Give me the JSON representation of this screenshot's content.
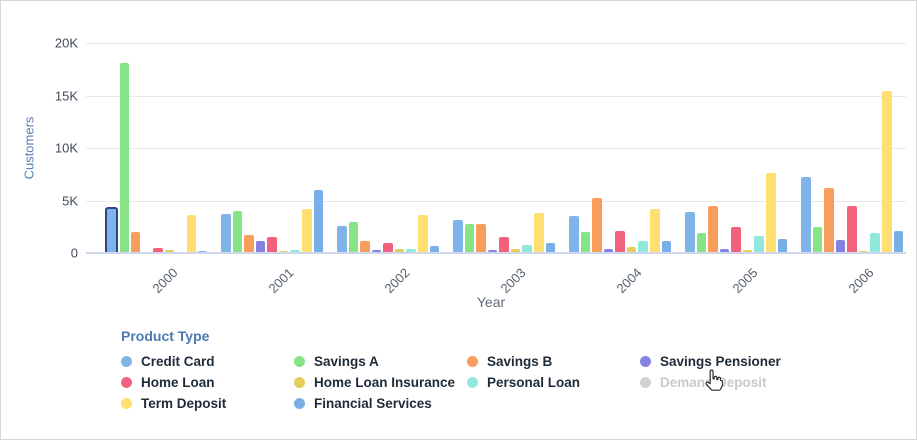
{
  "chart_data": {
    "type": "bar",
    "title": "",
    "xlabel": "Year",
    "ylabel": "Customers",
    "categories": [
      "2000",
      "2001",
      "2002",
      "2003",
      "2004",
      "2005",
      "2006"
    ],
    "ylim": [
      0,
      20000
    ],
    "yticks": [
      {
        "value": 0,
        "label": "0"
      },
      {
        "value": 5000,
        "label": "5K"
      },
      {
        "value": 10000,
        "label": "10K"
      },
      {
        "value": 15000,
        "label": "15K"
      },
      {
        "value": 20000,
        "label": "20K"
      }
    ],
    "grid": true,
    "legend_position": "bottom",
    "legend_title": "Product Type",
    "series": [
      {
        "name": "Credit Card",
        "color": "#80b4e8",
        "disabled": false,
        "values": [
          4400,
          3700,
          2550,
          3150,
          3500,
          3900,
          7200
        ]
      },
      {
        "name": "Savings A",
        "color": "#87e385",
        "disabled": false,
        "values": [
          18100,
          4000,
          3000,
          2800,
          2000,
          1900,
          2500
        ]
      },
      {
        "name": "Savings B",
        "color": "#f79e5c",
        "disabled": false,
        "values": [
          2000,
          1700,
          1100,
          2800,
          5200,
          4500,
          6200
        ]
      },
      {
        "name": "Savings Pensioner",
        "color": "#8583e2",
        "disabled": false,
        "values": [
          50,
          1100,
          300,
          300,
          400,
          400,
          1200
        ]
      },
      {
        "name": "Home Loan",
        "color": "#f2617e",
        "disabled": false,
        "values": [
          450,
          1500,
          1000,
          1500,
          2100,
          2500,
          4500
        ]
      },
      {
        "name": "Home Loan Insurance",
        "color": "#e3ce5c",
        "disabled": false,
        "values": [
          250,
          150,
          350,
          400,
          550,
          300,
          150
        ]
      },
      {
        "name": "Personal Loan",
        "color": "#92e8dc",
        "disabled": false,
        "values": [
          50,
          250,
          350,
          800,
          1100,
          1650,
          1900
        ]
      },
      {
        "name": "Demand Deposit",
        "color": "#d2d2d2",
        "disabled": true,
        "values": []
      },
      {
        "name": "Term Deposit",
        "color": "#ffdf70",
        "disabled": false,
        "values": [
          3650,
          4200,
          3600,
          3800,
          4200,
          7600,
          15400
        ]
      },
      {
        "name": "Financial Services",
        "color": "#79afe7",
        "disabled": false,
        "values": [
          150,
          6000,
          700,
          950,
          1100,
          1300,
          2100
        ]
      }
    ],
    "highlight": {
      "category": "2000",
      "series": "Credit Card"
    }
  }
}
